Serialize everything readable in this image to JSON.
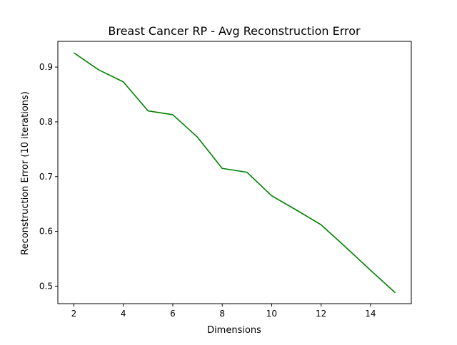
{
  "chart_data": {
    "type": "line",
    "title": "Breast Cancer RP - Avg Reconstruction Error",
    "xlabel": "Dimensions",
    "ylabel": "Reconstruction Error (10 iterations)",
    "xlim": [
      1.35,
      15.65
    ],
    "ylim": [
      0.468,
      0.947
    ],
    "xticks": [
      2,
      4,
      6,
      8,
      10,
      12,
      14
    ],
    "yticks": [
      0.5,
      0.6,
      0.7,
      0.8,
      0.9
    ],
    "grid": false,
    "line_color": "#008000",
    "series": [
      {
        "x": [
          2,
          3,
          4,
          5,
          6,
          7,
          8,
          9,
          10,
          11,
          12,
          13,
          14,
          15
        ],
        "values": [
          0.926,
          0.895,
          0.873,
          0.82,
          0.813,
          0.772,
          0.715,
          0.708,
          0.665,
          0.639,
          0.612,
          0.571,
          0.529,
          0.488
        ]
      }
    ]
  }
}
